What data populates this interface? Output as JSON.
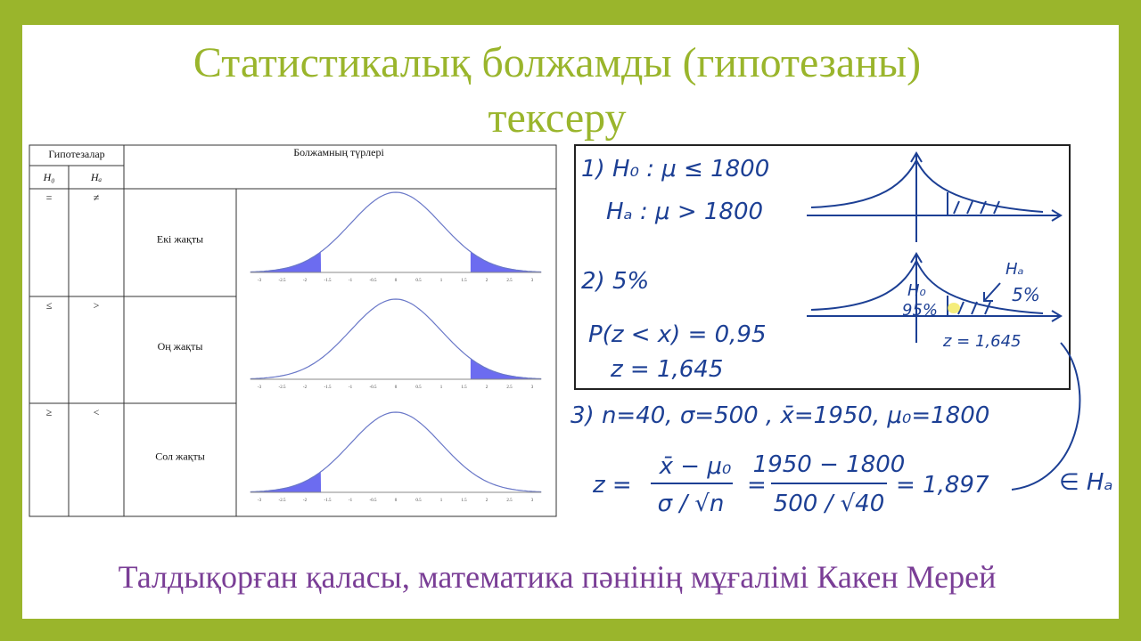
{
  "header": {
    "title_line1": "Статистикалық болжамды (гипотезаны)",
    "title_line2": "тексеру"
  },
  "table": {
    "head": {
      "hypotheses": "Гипотезалар",
      "kinds": "Болжамның түрлері",
      "h0": "H₀",
      "ha": "Hₐ"
    },
    "rows": [
      [
        "=",
        "≠",
        "Екі жақты"
      ],
      [
        "≤",
        ">",
        "Оң жақты"
      ],
      [
        "≥",
        "<",
        "Сол жақты"
      ]
    ],
    "axis_ticks": [
      "-3",
      "-2.5",
      "-2",
      "-1.5",
      "-1",
      "-0.5",
      "0",
      "0.5",
      "1",
      "1.5",
      "2",
      "2.5",
      "3"
    ]
  },
  "notes": {
    "step1_h0": "1)  H₀ : μ ≤ 1800",
    "step1_ha": "Hₐ : μ > 1800",
    "step2": "2)  5%",
    "prob": "P(z < x) = 0,95",
    "z_value": "z = 1,645",
    "graph_h0": "H₀",
    "graph_95": "95%",
    "graph_ha": "Hₐ",
    "graph_5": "5%",
    "graph_z": "z = 1,645",
    "step3": "3) n=40,  σ=500 ,  x̄=1950,  μ₀=1800",
    "formula_z": "z =",
    "formula_num": "x̄ − μ₀",
    "formula_den": "σ / √n",
    "formula_eq1": "=",
    "formula_num2": "1950 − 1800",
    "formula_den2": "500 / √40",
    "formula_result": "= 1,897",
    "formula_in": "∈ Hₐ"
  },
  "footer": {
    "author": "Талдықорған қаласы, математика пәнінің мұғалімі Какен Мерей"
  }
}
